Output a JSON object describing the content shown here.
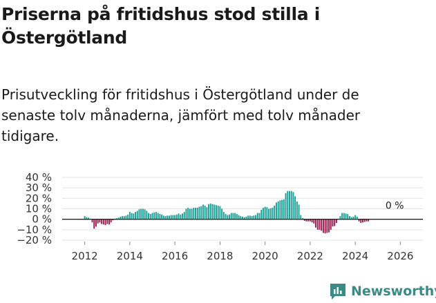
{
  "header": {
    "title": "Priserna på fritidshus stod stilla i Östergötland",
    "subtitle": "Prisutveckling för fritidshus i Östergötland under de senaste tolv månaderna, jämfört med tolv månader tidigare."
  },
  "brand": {
    "name": "Newsworthy",
    "color": "#3a8a86"
  },
  "chart_data": {
    "type": "bar",
    "title": "",
    "xlabel": "",
    "ylabel": "",
    "ylim": [
      -20,
      40
    ],
    "yticks": [
      -20,
      -10,
      0,
      10,
      20,
      30,
      40
    ],
    "ytick_labels": [
      "−20 %",
      "−10 %",
      "0 %",
      "10 %",
      "20 %",
      "30 %",
      "40 %"
    ],
    "xlim": [
      2011.0,
      2027.0
    ],
    "xticks": [
      2012,
      2014,
      2016,
      2018,
      2020,
      2022,
      2024,
      2026
    ],
    "xtick_labels": [
      "2012",
      "2014",
      "2016",
      "2018",
      "2020",
      "2022",
      "2024",
      "2026"
    ],
    "grid": true,
    "colors": {
      "positive": "#1a9e96",
      "negative": "#9b1a4f"
    },
    "annotation": {
      "text": "0 %",
      "x": 2025.75,
      "y": 0
    },
    "x_start": "2012-01",
    "step": "month",
    "values": [
      3,
      2,
      1.5,
      0.5,
      -3,
      -9,
      -7,
      -4,
      -3,
      -4.5,
      -5,
      -5.5,
      -4.5,
      -5,
      -3,
      -1,
      0.5,
      1,
      1.5,
      2.5,
      3,
      3,
      3.5,
      4.5,
      7,
      6,
      5.5,
      7,
      8,
      9.5,
      10,
      10,
      9.5,
      8,
      6,
      5,
      6,
      6.5,
      7,
      6,
      5,
      4.5,
      3.5,
      3,
      3.5,
      3.5,
      4,
      4,
      4,
      4.5,
      5.5,
      4.5,
      5.5,
      7,
      10,
      11,
      10,
      10,
      11,
      11,
      11,
      12,
      12.5,
      14,
      13,
      11.5,
      14.5,
      15,
      14.5,
      14,
      13.5,
      13,
      12.5,
      10,
      7,
      5,
      4,
      4.5,
      6,
      6,
      6,
      5,
      4,
      3,
      2.5,
      2,
      2.5,
      3.5,
      3.5,
      3,
      3.5,
      4,
      6,
      6,
      9,
      11,
      12,
      11.5,
      10,
      10.5,
      11,
      13,
      16,
      17,
      18,
      18.5,
      19,
      25,
      27,
      27,
      27,
      26,
      22,
      17,
      14,
      4,
      1,
      -1.5,
      -2,
      -2,
      -2,
      -3,
      -4,
      -8,
      -10,
      -10,
      -11,
      -13,
      -13.5,
      -13,
      -12.5,
      -10,
      -7,
      -6.5,
      -3.5,
      0.5,
      3,
      6,
      6,
      5.5,
      5,
      3,
      2,
      2.5,
      4,
      2.5,
      -2,
      -3.5,
      -3,
      -2.5,
      -2,
      -2
    ]
  }
}
